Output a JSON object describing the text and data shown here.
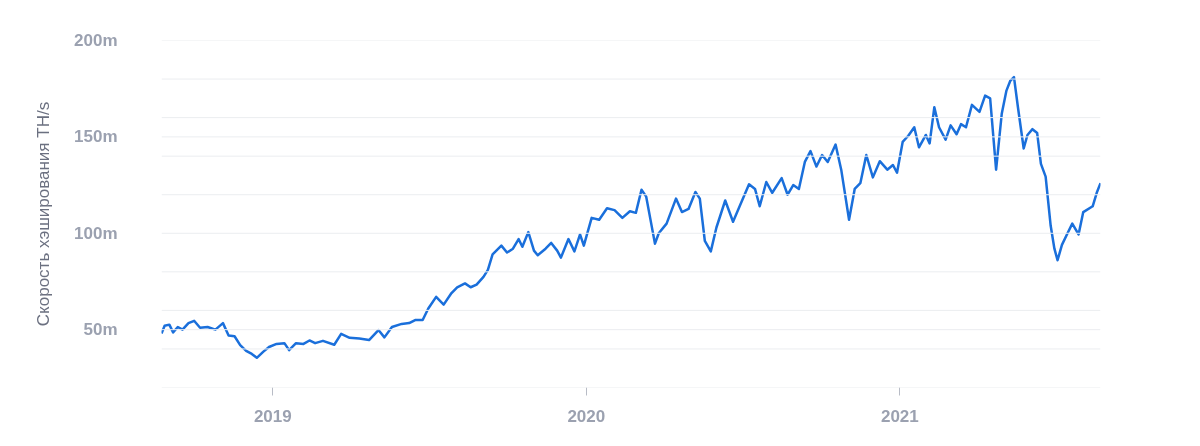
{
  "chart_data": {
    "type": "line",
    "ylabel": "Скорость хэширования TH/s",
    "xlim": [
      2018.645,
      2021.64
    ],
    "xticks": [
      2019,
      2020,
      2021
    ],
    "ylim": [
      20,
      200
    ],
    "yticks": [
      {
        "value": 20,
        "label": null
      },
      {
        "value": 40,
        "label": null
      },
      {
        "value": 50,
        "label": "50m"
      },
      {
        "value": 60,
        "label": null
      },
      {
        "value": 80,
        "label": null
      },
      {
        "value": 100,
        "label": "100m"
      },
      {
        "value": 120,
        "label": null
      },
      {
        "value": 140,
        "label": null
      },
      {
        "value": 150,
        "label": "150m"
      },
      {
        "value": 160,
        "label": null
      },
      {
        "value": 180,
        "label": null
      },
      {
        "value": 200,
        "label": "200m"
      }
    ],
    "grid": "y",
    "series": [
      {
        "color": "#1a6fdb",
        "x": [
          2018.645,
          2018.655,
          2018.67,
          2018.682,
          2018.697,
          2018.712,
          2018.731,
          2018.749,
          2018.768,
          2018.792,
          2018.817,
          2018.841,
          2018.859,
          2018.878,
          2018.896,
          2018.915,
          2018.933,
          2018.949,
          2018.97,
          2018.988,
          2019.012,
          2019.037,
          2019.052,
          2019.074,
          2019.098,
          2019.117,
          2019.135,
          2019.16,
          2019.196,
          2019.218,
          2019.245,
          2019.276,
          2019.307,
          2019.337,
          2019.356,
          2019.38,
          2019.411,
          2019.435,
          2019.454,
          2019.478,
          2019.496,
          2019.521,
          2019.545,
          2019.57,
          2019.588,
          2019.613,
          2019.631,
          2019.65,
          2019.672,
          2019.686,
          2019.701,
          2019.729,
          2019.747,
          2019.766,
          2019.784,
          2019.796,
          2019.815,
          2019.833,
          2019.845,
          2019.87,
          2019.888,
          2019.907,
          2019.919,
          2019.943,
          2019.962,
          2019.98,
          2019.992,
          2020.017,
          2020.041,
          2020.066,
          2020.09,
          2020.115,
          2020.139,
          2020.158,
          2020.176,
          2020.191,
          2020.207,
          2020.219,
          2020.231,
          2020.256,
          2020.286,
          2020.305,
          2020.326,
          2020.348,
          2020.362,
          2020.378,
          2020.397,
          2020.415,
          2020.443,
          2020.468,
          2020.489,
          2020.519,
          2020.538,
          2020.553,
          2020.574,
          2020.593,
          2020.623,
          2020.642,
          2020.66,
          2020.678,
          2020.697,
          2020.715,
          2020.734,
          2020.752,
          2020.77,
          2020.795,
          2020.813,
          2020.838,
          2020.856,
          2020.874,
          2020.893,
          2020.914,
          2020.936,
          2020.96,
          2020.978,
          2020.991,
          2021.009,
          2021.027,
          2021.046,
          2021.061,
          2021.083,
          2021.095,
          2021.11,
          2021.125,
          2021.146,
          2021.162,
          2021.181,
          2021.195,
          2021.211,
          2021.23,
          2021.254,
          2021.272,
          2021.288,
          2021.307,
          2021.325,
          2021.34,
          2021.352,
          2021.364,
          2021.377,
          2021.395,
          2021.407,
          2021.423,
          2021.438,
          2021.45,
          2021.465,
          2021.481,
          2021.493,
          2021.503,
          2021.517,
          2021.536,
          2021.55,
          2021.57,
          2021.585,
          2021.615,
          2021.628,
          2021.64
        ],
        "values": [
          48,
          52,
          52.6,
          48.6,
          51.4,
          50,
          53.4,
          54.6,
          51,
          51.4,
          50,
          53.4,
          47,
          46.6,
          42,
          39,
          37.4,
          35.4,
          38.6,
          41,
          42.6,
          43,
          39.4,
          43,
          42.6,
          44.4,
          43,
          44.2,
          42.2,
          47.8,
          45.8,
          45.4,
          44.6,
          49.8,
          46,
          51.4,
          53,
          53.4,
          55,
          55,
          61,
          67,
          63,
          69,
          72,
          74,
          72,
          73.4,
          77.4,
          81,
          89,
          93.6,
          90,
          92,
          97,
          93,
          100.6,
          91,
          88.6,
          92,
          95,
          91,
          87.4,
          97,
          90.6,
          99.4,
          93.6,
          108,
          107,
          113,
          112,
          108,
          111.4,
          110.6,
          122.6,
          119,
          105,
          94.6,
          100,
          105,
          118,
          111,
          112.6,
          121.4,
          118,
          96,
          90.6,
          103,
          117,
          106,
          114,
          125.4,
          123,
          114,
          126.6,
          121,
          128.6,
          120,
          125,
          123,
          137,
          142.6,
          134.6,
          140.6,
          137,
          146,
          133,
          107,
          123,
          126,
          140.6,
          129,
          137.4,
          133,
          135.4,
          131.4,
          147.4,
          150.6,
          155,
          144.6,
          151,
          146.6,
          165.4,
          155,
          148.6,
          156,
          151.4,
          156.6,
          155,
          166.6,
          163,
          171.4,
          170,
          133,
          162,
          174,
          179,
          181,
          165,
          144,
          151,
          154,
          152,
          136,
          129.4,
          104,
          92,
          86,
          94,
          100.4,
          105,
          99.4,
          111,
          114,
          121,
          126
        ]
      }
    ]
  }
}
